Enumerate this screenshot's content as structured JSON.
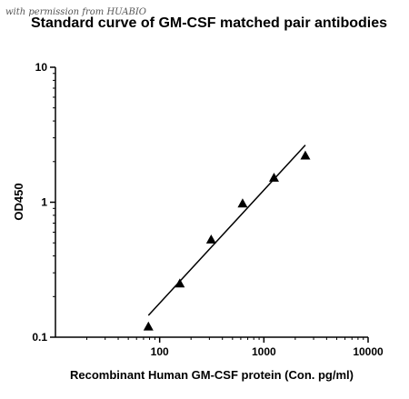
{
  "watermark": "with permission from HUABIO",
  "chart_data": {
    "type": "scatter",
    "title": "Standard curve of GM-CSF matched pair antibodies",
    "xlabel": "Recombinant Human GM-CSF protein (Con. pg/ml)",
    "ylabel": "OD450",
    "x_scale": "log",
    "y_scale": "log",
    "xlim": [
      10,
      10000
    ],
    "ylim": [
      0.1,
      10
    ],
    "x_tick_labels": [
      "100",
      "1000",
      "10000"
    ],
    "y_tick_labels": [
      "0.1",
      "1",
      "10"
    ],
    "grid": false,
    "marker": "triangle",
    "color": "#000000",
    "series": [
      {
        "points": [
          {
            "x": 78,
            "y": 0.12
          },
          {
            "x": 156,
            "y": 0.25
          },
          {
            "x": 312,
            "y": 0.53
          },
          {
            "x": 625,
            "y": 0.98
          },
          {
            "x": 1250,
            "y": 1.52
          },
          {
            "x": 2500,
            "y": 2.22
          }
        ]
      }
    ],
    "fit_line": [
      {
        "x": 78,
        "y": 0.145
      },
      {
        "x": 2500,
        "y": 2.65
      }
    ]
  }
}
